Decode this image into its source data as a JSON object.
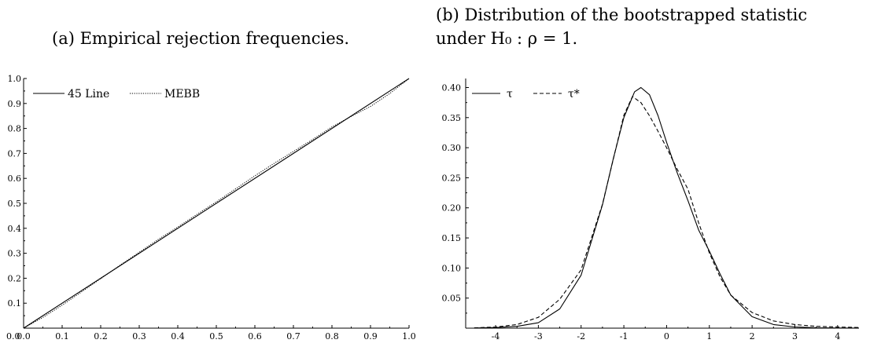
{
  "captions": {
    "a": "(a) Empirical rejection frequencies.",
    "b_line1": "(b) Distribution of the bootstrapped statistic",
    "b_line2": "under H₀ : ρ = 1."
  },
  "chart_data": [
    {
      "type": "line",
      "title": "",
      "xlabel": "",
      "ylabel": "",
      "xlim": [
        0.0,
        1.0
      ],
      "ylim": [
        0.0,
        1.0
      ],
      "x_ticks": [
        "0.0",
        "0.1",
        "0.2",
        "0.3",
        "0.4",
        "0.5",
        "0.6",
        "0.7",
        "0.8",
        "0.9",
        "1.0"
      ],
      "y_ticks": [
        "0.1",
        "0.2",
        "0.3",
        "0.4",
        "0.5",
        "0.6",
        "0.7",
        "0.8",
        "0.9",
        "1.0"
      ],
      "legend_position": "top-left",
      "series": [
        {
          "name": "45 Line",
          "style": "solid",
          "x": [
            0.0,
            1.0
          ],
          "y": [
            0.0,
            1.0
          ]
        },
        {
          "name": "MEBB",
          "style": "dotted",
          "x": [
            0.0,
            0.05,
            0.1,
            0.15,
            0.2,
            0.25,
            0.3,
            0.35,
            0.4,
            0.45,
            0.5,
            0.55,
            0.6,
            0.65,
            0.7,
            0.75,
            0.8,
            0.85,
            0.9,
            0.95,
            1.0
          ],
          "y": [
            0.0,
            0.043,
            0.092,
            0.145,
            0.198,
            0.252,
            0.304,
            0.356,
            0.405,
            0.456,
            0.506,
            0.558,
            0.61,
            0.66,
            0.708,
            0.756,
            0.806,
            0.848,
            0.888,
            0.94,
            1.0
          ]
        }
      ]
    },
    {
      "type": "line",
      "title": "",
      "xlabel": "",
      "ylabel": "",
      "xlim": [
        -4.7,
        4.5
      ],
      "ylim": [
        0.0,
        0.415
      ],
      "x_ticks": [
        "-4",
        "-3",
        "-2",
        "-1",
        "0",
        "1",
        "2",
        "3",
        "4"
      ],
      "y_ticks": [
        "0.05",
        "0.10",
        "0.15",
        "0.20",
        "0.25",
        "0.30",
        "0.35",
        "0.40"
      ],
      "legend_position": "top-left",
      "series": [
        {
          "name": "τ",
          "style": "solid",
          "x": [
            -4.5,
            -4.0,
            -3.5,
            -3.0,
            -2.5,
            -2.0,
            -1.5,
            -1.25,
            -1.0,
            -0.75,
            -0.6,
            -0.4,
            -0.2,
            0.0,
            0.25,
            0.5,
            0.75,
            1.0,
            1.25,
            1.5,
            2.0,
            2.5,
            3.0,
            3.5,
            4.0,
            4.5
          ],
          "y": [
            0.0003,
            0.001,
            0.003,
            0.009,
            0.032,
            0.088,
            0.205,
            0.281,
            0.35,
            0.393,
            0.4,
            0.388,
            0.353,
            0.309,
            0.258,
            0.212,
            0.163,
            0.128,
            0.09,
            0.055,
            0.019,
            0.006,
            0.002,
            0.0006,
            0.0003,
            0.0001
          ]
        },
        {
          "name": "τ*",
          "style": "dashed",
          "x": [
            -4.5,
            -4.0,
            -3.5,
            -3.0,
            -2.5,
            -2.0,
            -1.5,
            -1.25,
            -1.0,
            -0.8,
            -0.6,
            -0.4,
            -0.2,
            0.0,
            0.25,
            0.5,
            0.75,
            1.0,
            1.25,
            1.5,
            2.0,
            2.5,
            3.0,
            3.5,
            4.0,
            4.5
          ],
          "y": [
            0.0005,
            0.002,
            0.006,
            0.018,
            0.048,
            0.097,
            0.206,
            0.28,
            0.354,
            0.385,
            0.375,
            0.353,
            0.327,
            0.3,
            0.264,
            0.231,
            0.175,
            0.125,
            0.085,
            0.055,
            0.026,
            0.012,
            0.006,
            0.003,
            0.002,
            0.001
          ]
        }
      ]
    }
  ]
}
